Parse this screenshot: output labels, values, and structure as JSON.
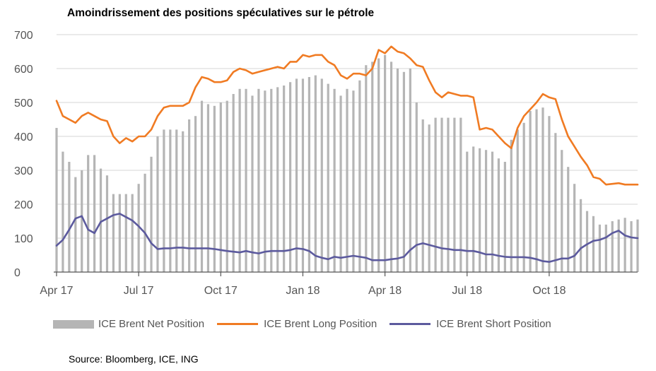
{
  "chart_data": {
    "type": "bar+line",
    "title": "Amoindrissement des positions spéculatives sur le pétrole",
    "source": "Source: Bloomberg, ICE, ING",
    "ylim": [
      0,
      700
    ],
    "yticks": [
      "0",
      "100",
      "200",
      "300",
      "400",
      "500",
      "600",
      "700"
    ],
    "xticks": [
      {
        "label": "Apr 17",
        "x": 0
      },
      {
        "label": "Jul 17",
        "x": 13
      },
      {
        "label": "Oct 17",
        "x": 26
      },
      {
        "label": "Jan 18",
        "x": 39
      },
      {
        "label": "Apr 18",
        "x": 52
      },
      {
        "label": "Jul 18",
        "x": 65
      },
      {
        "label": "Oct 18",
        "x": 78
      }
    ],
    "grid": true,
    "legend_position": "bottom",
    "series": [
      {
        "name": "ICE Brent Net Position",
        "kind": "bar",
        "color": "#b5b5b5",
        "values": [
          425,
          355,
          325,
          280,
          300,
          345,
          345,
          305,
          285,
          230,
          230,
          230,
          230,
          260,
          290,
          340,
          400,
          420,
          420,
          420,
          415,
          450,
          460,
          505,
          495,
          490,
          500,
          505,
          525,
          540,
          540,
          520,
          540,
          535,
          540,
          545,
          550,
          560,
          570,
          570,
          575,
          580,
          570,
          555,
          540,
          520,
          540,
          535,
          565,
          610,
          620,
          630,
          640,
          620,
          600,
          590,
          600,
          500,
          450,
          435,
          455,
          455,
          455,
          455,
          455,
          355,
          370,
          365,
          360,
          355,
          335,
          325,
          390,
          420,
          440,
          475,
          480,
          485,
          460,
          410,
          360,
          310,
          260,
          215,
          180,
          165,
          140,
          140,
          150,
          155,
          160,
          150,
          155
        ]
      },
      {
        "name": "ICE Brent Long Position",
        "kind": "line",
        "color": "#f07b23",
        "values": [
          505,
          460,
          450,
          440,
          460,
          470,
          460,
          450,
          445,
          400,
          380,
          395,
          385,
          400,
          400,
          420,
          460,
          485,
          490,
          490,
          490,
          500,
          545,
          575,
          570,
          560,
          560,
          565,
          590,
          600,
          595,
          585,
          590,
          595,
          600,
          605,
          600,
          620,
          620,
          640,
          635,
          640,
          640,
          620,
          610,
          580,
          570,
          585,
          585,
          580,
          600,
          655,
          645,
          665,
          650,
          645,
          630,
          610,
          605,
          565,
          530,
          515,
          530,
          525,
          520,
          520,
          515,
          420,
          425,
          420,
          400,
          380,
          365,
          425,
          460,
          480,
          500,
          525,
          515,
          510,
          450,
          400,
          370,
          340,
          315,
          280,
          275,
          258,
          260,
          262,
          258,
          258,
          258
        ]
      },
      {
        "name": "ICE Brent Short Position",
        "kind": "line",
        "color": "#5c5a9e",
        "values": [
          78,
          95,
          125,
          158,
          165,
          125,
          115,
          148,
          158,
          168,
          172,
          162,
          152,
          135,
          115,
          85,
          68,
          70,
          70,
          72,
          72,
          70,
          70,
          70,
          70,
          68,
          65,
          62,
          60,
          58,
          62,
          58,
          55,
          60,
          62,
          62,
          62,
          65,
          70,
          68,
          62,
          48,
          42,
          38,
          45,
          42,
          45,
          48,
          45,
          42,
          35,
          35,
          35,
          38,
          40,
          45,
          65,
          80,
          85,
          80,
          75,
          70,
          68,
          65,
          65,
          62,
          62,
          58,
          52,
          52,
          48,
          45,
          44,
          44,
          44,
          42,
          38,
          32,
          30,
          35,
          40,
          40,
          48,
          70,
          82,
          92,
          95,
          102,
          115,
          122,
          108,
          102,
          100
        ]
      }
    ]
  }
}
